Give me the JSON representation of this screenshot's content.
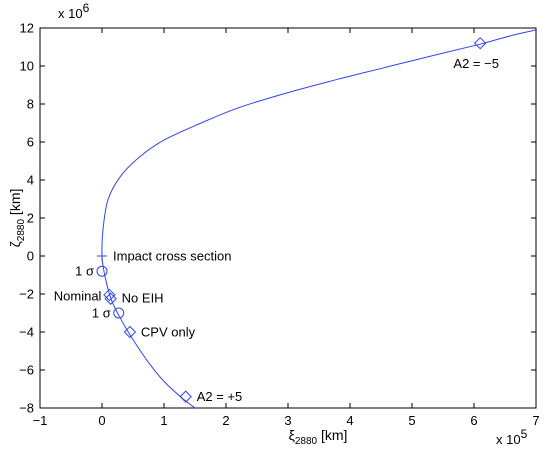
{
  "chart_data": {
    "type": "line",
    "xlim": [
      -1,
      7
    ],
    "ylim": [
      -8,
      12
    ],
    "x_multiplier_label": {
      "base": "x 10",
      "exp": "5"
    },
    "y_multiplier_label": {
      "base": "x 10",
      "exp": "6"
    },
    "xticks": [
      -1,
      0,
      1,
      2,
      3,
      4,
      5,
      6,
      7
    ],
    "yticks": [
      -8,
      -6,
      -4,
      -2,
      0,
      2,
      4,
      6,
      8,
      10,
      12
    ],
    "xlabel": {
      "symbol": "ξ",
      "sub": "2880",
      "unit": " [km]"
    },
    "ylabel": {
      "symbol": "ζ",
      "sub": "2880",
      "unit": " [km]"
    },
    "grid": false,
    "series_color": "#3344ee",
    "curve": {
      "x": [
        1.5,
        1.3,
        1.0,
        0.75,
        0.5,
        0.3,
        0.15,
        0.05,
        0.0,
        0.02,
        0.1,
        0.3,
        0.6,
        1.0,
        1.6,
        2.2,
        3.0,
        3.8,
        4.6,
        5.4,
        6.1,
        6.6,
        7.0
      ],
      "y": [
        -8.0,
        -7.5,
        -6.6,
        -5.6,
        -4.4,
        -3.3,
        -2.3,
        -1.1,
        0.0,
        1.5,
        3.0,
        4.2,
        5.2,
        6.1,
        7.0,
        7.8,
        8.6,
        9.3,
        9.95,
        10.6,
        11.15,
        11.6,
        11.9
      ]
    },
    "markers": [
      {
        "shape": "diamond",
        "x": 6.1,
        "y": 11.2
      },
      {
        "shape": "diamond",
        "x": 1.35,
        "y": -7.4
      },
      {
        "shape": "diamond",
        "x": 0.45,
        "y": -4.0
      },
      {
        "shape": "diamond",
        "x": 0.12,
        "y": -2.05
      },
      {
        "shape": "diamond",
        "x": 0.14,
        "y": -2.25
      },
      {
        "shape": "circle",
        "x": 0.0,
        "y": -0.8
      },
      {
        "shape": "circle",
        "x": 0.27,
        "y": -3.0
      },
      {
        "shape": "plus",
        "x": 0.0,
        "y": 0.0
      }
    ],
    "annotations": [
      {
        "text": "A2 = −5",
        "x": 6.1,
        "y": 11.2,
        "anchor": "below-center"
      },
      {
        "text": "Impact cross section",
        "x": 0.0,
        "y": 0.0,
        "anchor": "right"
      },
      {
        "text": "1 σ",
        "x": 0.0,
        "y": -0.8,
        "anchor": "left"
      },
      {
        "text": "Nominal",
        "x": 0.12,
        "y": -2.1,
        "anchor": "left"
      },
      {
        "text": "No EIH",
        "x": 0.14,
        "y": -2.2,
        "anchor": "right"
      },
      {
        "text": "1 σ",
        "x": 0.27,
        "y": -3.0,
        "anchor": "left"
      },
      {
        "text": "CPV only",
        "x": 0.45,
        "y": -4.0,
        "anchor": "right"
      },
      {
        "text": "A2 = +5",
        "x": 1.35,
        "y": -7.4,
        "anchor": "right"
      }
    ]
  }
}
